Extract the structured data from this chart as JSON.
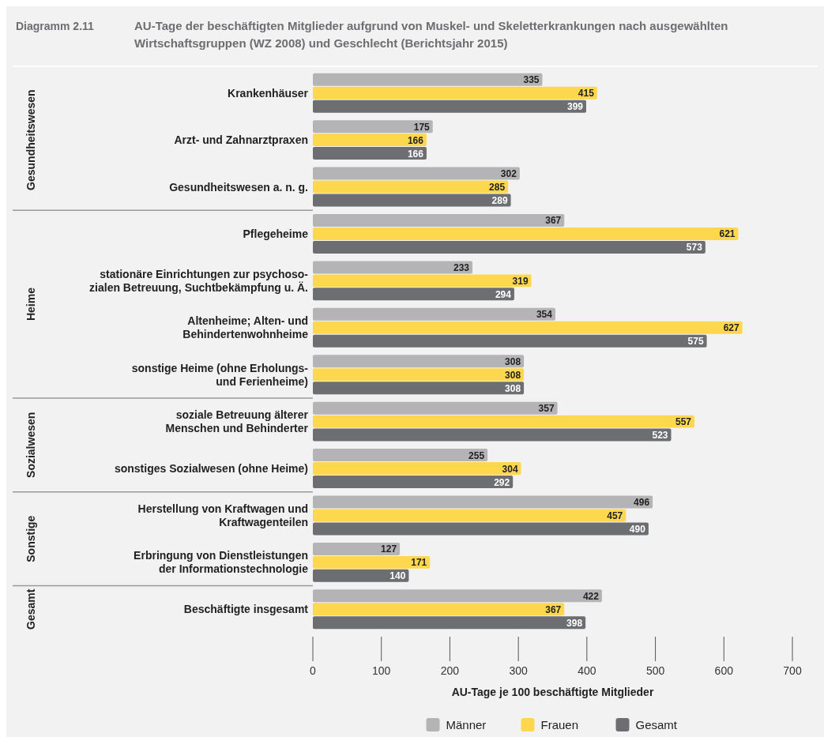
{
  "chart_data": {
    "type": "bar",
    "orientation": "horizontal",
    "title": "AU-Tage der beschäftigten Mitglieder aufgrund von Muskel- und Skeletterkrankungen nach ausgewählten Wirtschaftsgruppen (WZ 2008) und Geschlecht (Berichtsjahr 2015)",
    "xlabel": "AU-Tage je 100 beschäftigte Mitglieder",
    "categories": [
      "Krankenhäuser",
      "Arzt- und Zahnarztpraxen",
      "Gesundheitswesen a. n. g.",
      "Pflegeheime",
      "stationäre Einrichtungen zur psychoso-\nzialen Betreuung, Suchtbekämpfung u. Ä.",
      "Altenheime; Alten- und\nBehindertenwohnheime",
      "sonstige Heime (ohne Erholungs-\nund Ferienheime)",
      "soziale Betreuung älterer\nMenschen und Behinderter",
      "sonstiges Sozialwesen (ohne Heime)",
      "Herstellung von Kraftwagen und\nKraftwagenteilen",
      "Erbringung von Dienstleistungen\nder Informationstechnologie",
      "Beschäftigte insgesamt"
    ],
    "series": [
      {
        "name": "Männer",
        "color": "#b4b4b6",
        "values": [
          335,
          175,
          302,
          367,
          233,
          354,
          308,
          357,
          255,
          496,
          127,
          422
        ]
      },
      {
        "name": "Frauen",
        "color": "#fdd84f",
        "values": [
          415,
          166,
          285,
          621,
          319,
          627,
          308,
          557,
          304,
          457,
          171,
          367
        ]
      },
      {
        "name": "Gesamt",
        "color": "#6d6e71",
        "values": [
          399,
          166,
          289,
          573,
          294,
          575,
          308,
          523,
          292,
          490,
          140,
          398
        ]
      }
    ],
    "xlim": [
      0,
      700
    ],
    "xticks": [
      0,
      100,
      200,
      300,
      400,
      500,
      600,
      700
    ],
    "data_labels": true,
    "legend": "bottom",
    "annotations": [
      "Diagramm 2.11",
      "Gesundheitswesen",
      "Heime",
      "Sozialwesen",
      "Sonstige",
      "Gesamt"
    ]
  }
}
